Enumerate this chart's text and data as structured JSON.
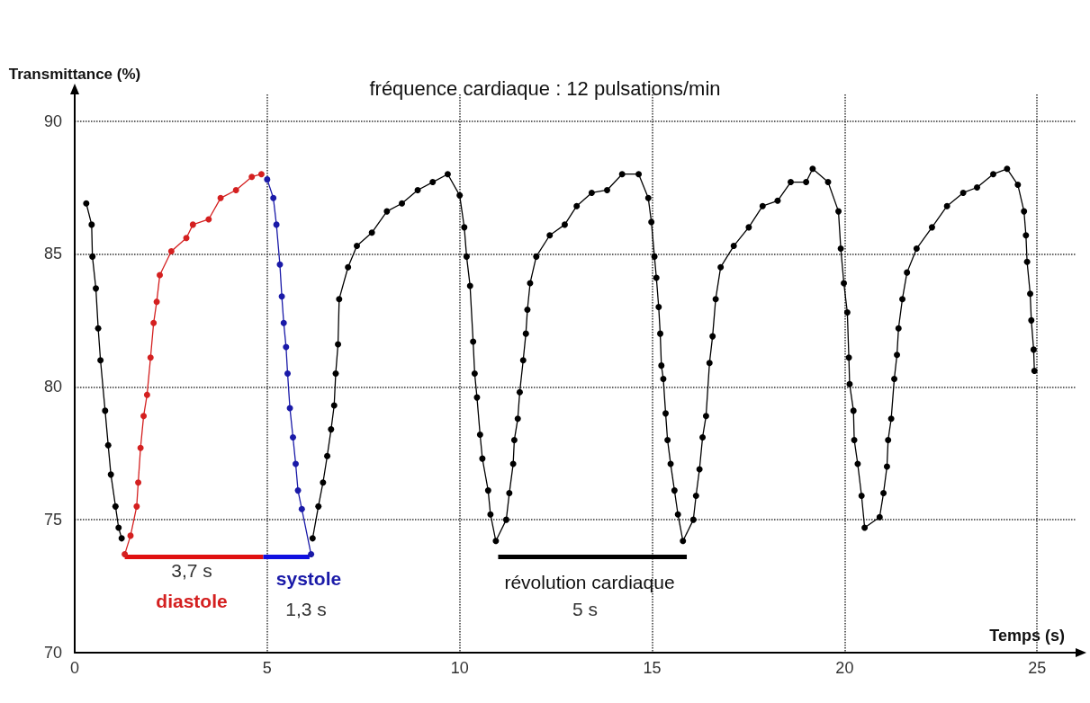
{
  "chart_data": {
    "type": "line",
    "title": "fréquence cardiaque : 12 pulsations/min",
    "xlabel": "Temps (s)",
    "ylabel": "Transmittance (%)",
    "xlim": [
      0,
      26
    ],
    "xticks": [
      0,
      5,
      10,
      15,
      20,
      25
    ],
    "ylim": [
      70,
      91
    ],
    "yticks": [
      70,
      75,
      80,
      85,
      90
    ],
    "grid": true,
    "marker": "circle",
    "line_style": "solid",
    "series": [
      {
        "color": "#000000",
        "x": [
          0.3,
          0.44,
          0.46,
          0.55,
          0.61,
          0.67,
          0.79,
          0.87,
          0.94,
          1.06,
          1.14,
          1.22
        ],
        "values": [
          86.9,
          86.1,
          84.9,
          83.7,
          82.2,
          81.0,
          79.1,
          77.8,
          76.7,
          75.5,
          74.7,
          74.3
        ]
      },
      {
        "color": "#d42020",
        "x": [
          1.3,
          1.45,
          1.61,
          1.65,
          1.71,
          1.79,
          1.88,
          1.97,
          2.05,
          2.13,
          2.21,
          2.51,
          2.9,
          3.07,
          3.48,
          3.79,
          4.19,
          4.6,
          4.85
        ],
        "values": [
          73.7,
          74.4,
          75.5,
          76.4,
          77.7,
          78.9,
          79.7,
          81.1,
          82.4,
          83.2,
          84.2,
          85.1,
          85.6,
          86.1,
          86.3,
          87.1,
          87.4,
          87.9,
          88.0
        ]
      },
      {
        "color": "#1a1aa8",
        "x": [
          5.0,
          5.16,
          5.24,
          5.33,
          5.38,
          5.43,
          5.49,
          5.53,
          5.59,
          5.67,
          5.74,
          5.8,
          5.9,
          6.14
        ],
        "values": [
          87.8,
          87.1,
          86.1,
          84.6,
          83.4,
          82.4,
          81.5,
          80.5,
          79.2,
          78.1,
          77.1,
          76.1,
          75.4,
          73.7
        ]
      },
      {
        "color": "#000000",
        "x": [
          6.18,
          6.33,
          6.45,
          6.56,
          6.66,
          6.74,
          6.78,
          6.84,
          6.87,
          7.1,
          7.33,
          7.72,
          8.11,
          8.5,
          8.91,
          9.3,
          9.69,
          10.0,
          10.12,
          10.18,
          10.27,
          10.35,
          10.39,
          10.45,
          10.53,
          10.59,
          10.74,
          10.8,
          10.94,
          11.21,
          11.29,
          11.39,
          11.42,
          11.51,
          11.56,
          11.65,
          11.72,
          11.76,
          11.83,
          11.99,
          12.34,
          12.73,
          13.04,
          13.43,
          13.83,
          14.22,
          14.65,
          14.9,
          14.98,
          15.06,
          15.11,
          15.17,
          15.21,
          15.24,
          15.29,
          15.35,
          15.4,
          15.48,
          15.58,
          15.67,
          15.8,
          16.07,
          16.14,
          16.23,
          16.31,
          16.4,
          16.49,
          16.57,
          16.65,
          16.78,
          17.12,
          17.51,
          17.87,
          18.26,
          18.6,
          19.0,
          19.17,
          19.57,
          19.84,
          19.9,
          19.98,
          20.07,
          20.11,
          20.13,
          20.23,
          20.25,
          20.34,
          20.44,
          20.52,
          20.91,
          21.01,
          21.1,
          21.13,
          21.21,
          21.29,
          21.36,
          21.4,
          21.5,
          21.62,
          21.87,
          22.27,
          22.66,
          23.08,
          23.44,
          23.86,
          24.22,
          24.5,
          24.66,
          24.71,
          24.74,
          24.82,
          24.85,
          24.91,
          24.93
        ],
        "values": [
          74.3,
          75.5,
          76.4,
          77.4,
          78.4,
          79.3,
          80.5,
          81.6,
          83.3,
          84.5,
          85.3,
          85.8,
          86.6,
          86.9,
          87.4,
          87.7,
          88.0,
          87.2,
          86.0,
          84.9,
          83.8,
          81.7,
          80.5,
          79.6,
          78.2,
          77.3,
          76.1,
          75.2,
          74.2,
          75.0,
          76.0,
          77.1,
          78.0,
          78.8,
          79.8,
          81.0,
          82.0,
          82.9,
          83.9,
          84.9,
          85.7,
          86.1,
          86.8,
          87.3,
          87.4,
          88.0,
          88.0,
          87.1,
          86.2,
          84.9,
          84.1,
          83.0,
          82.0,
          80.8,
          80.3,
          79.0,
          78.0,
          77.1,
          76.1,
          75.2,
          74.2,
          75.0,
          75.9,
          76.9,
          78.1,
          78.9,
          80.9,
          81.9,
          83.3,
          84.5,
          85.3,
          86.0,
          86.8,
          87.0,
          87.7,
          87.7,
          88.2,
          87.7,
          86.6,
          85.2,
          83.9,
          82.8,
          81.1,
          80.1,
          79.1,
          78.0,
          77.1,
          75.9,
          74.7,
          75.1,
          76.0,
          77.0,
          78.0,
          78.8,
          80.3,
          81.2,
          82.2,
          83.3,
          84.3,
          85.2,
          86.0,
          86.8,
          87.3,
          87.5,
          88.0,
          88.2,
          87.6,
          86.6,
          85.7,
          84.7,
          83.5,
          82.5,
          81.4,
          80.6
        ]
      },
      {
        "color": "#e01010",
        "marker": "none",
        "x": [
          1.3,
          4.9
        ],
        "values": [
          73.6,
          73.6
        ]
      },
      {
        "color": "#1010e0",
        "marker": "none",
        "x": [
          4.9,
          6.1
        ],
        "values": [
          73.6,
          73.6
        ]
      },
      {
        "color": "#000000",
        "marker": "none",
        "x": [
          11.0,
          15.9
        ],
        "values": [
          73.6,
          73.6
        ]
      }
    ],
    "annotations": [
      "3,7 s",
      "diastole",
      "systole",
      "1,3 s",
      "révolution cardiaque",
      "5 s"
    ]
  }
}
